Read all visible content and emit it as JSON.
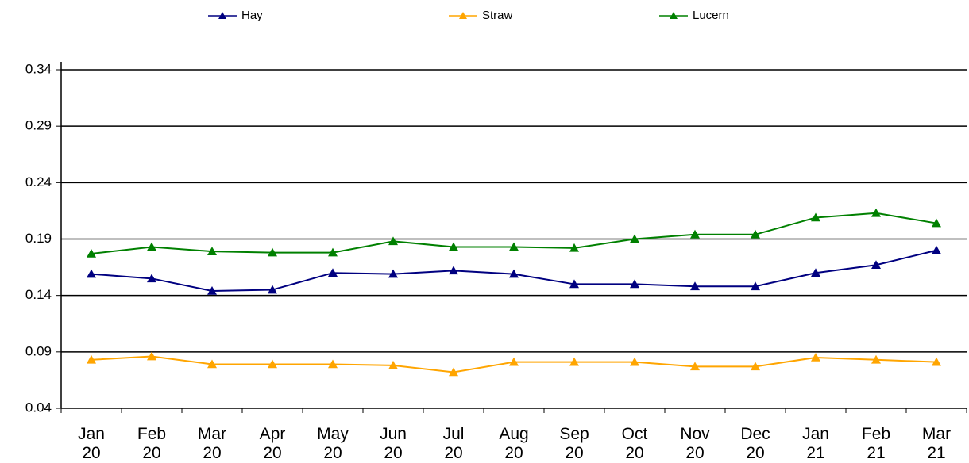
{
  "chart_data": {
    "type": "line",
    "categories": [
      "Jan 20",
      "Feb 20",
      "Mar 20",
      "Apr 20",
      "May 20",
      "Jun 20",
      "Jul 20",
      "Aug 20",
      "Sep 20",
      "Oct 20",
      "Nov 20",
      "Dec 20",
      "Jan 21",
      "Feb 21",
      "Mar 21"
    ],
    "series": [
      {
        "name": "Hay",
        "color": "#000080",
        "values": [
          0.159,
          0.155,
          0.144,
          0.145,
          0.16,
          0.159,
          0.162,
          0.159,
          0.15,
          0.15,
          0.148,
          0.148,
          0.16,
          0.167,
          0.18
        ]
      },
      {
        "name": "Straw",
        "color": "#ffa500",
        "values": [
          0.083,
          0.086,
          0.079,
          0.079,
          0.079,
          0.078,
          0.072,
          0.081,
          0.081,
          0.081,
          0.077,
          0.077,
          0.085,
          0.083,
          0.081
        ]
      },
      {
        "name": "Lucern",
        "color": "#008000",
        "values": [
          0.177,
          0.183,
          0.179,
          0.178,
          0.178,
          0.188,
          0.183,
          0.183,
          0.182,
          0.19,
          0.194,
          0.194,
          0.209,
          0.213,
          0.204
        ]
      }
    ],
    "ylim": [
      0.04,
      0.34
    ],
    "yticks": [
      0.04,
      0.09,
      0.14,
      0.19,
      0.24,
      0.29,
      0.34
    ],
    "grid": true,
    "legend": "top"
  }
}
